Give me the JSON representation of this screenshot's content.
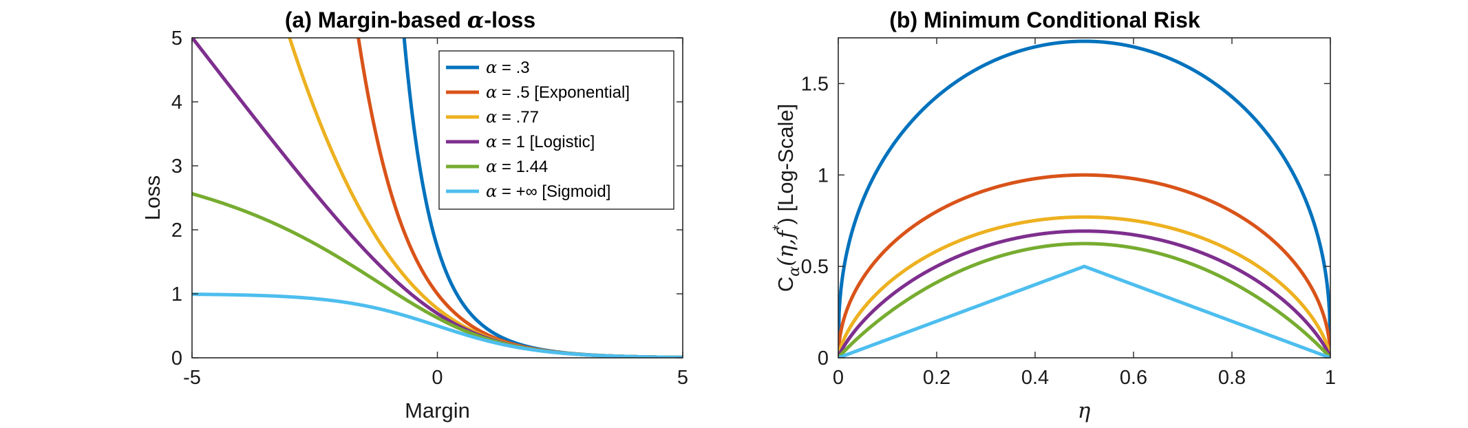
{
  "chart_data": [
    {
      "type": "line",
      "title": "(a) Margin-based α-loss",
      "title_prefix": "(a) Margin-based ",
      "title_greek": "α",
      "title_suffix": "-loss",
      "xlabel": "Margin",
      "ylabel": "Loss",
      "xlim": [
        -5,
        5
      ],
      "ylim": [
        0,
        5
      ],
      "xticks": [
        -5,
        0,
        5
      ],
      "xtick_labels": [
        "-5",
        "0",
        "5"
      ],
      "yticks": [
        0,
        1,
        2,
        3,
        4,
        5
      ],
      "ytick_labels": [
        "0",
        "1",
        "2",
        "3",
        "4",
        "5"
      ],
      "grid": false,
      "legend_position": "top-right",
      "function": "alpha-loss of sigmoid(margin)",
      "series": [
        {
          "name": "α = .3",
          "greek": "α",
          "label": " = .3",
          "alpha": 0.3,
          "color": "#0072BD"
        },
        {
          "name": "α = .5 [Exponential]",
          "greek": "α",
          "label": " = .5 [Exponential]",
          "alpha": 0.5,
          "color": "#D95319"
        },
        {
          "name": "α = .77",
          "greek": "α",
          "label": " = .77",
          "alpha": 0.77,
          "color": "#EDB120"
        },
        {
          "name": "α = 1 [Logistic]",
          "greek": "α",
          "label": " = 1 [Logistic]",
          "alpha": 1,
          "color": "#7E2F8E"
        },
        {
          "name": "α = 1.44",
          "greek": "α",
          "label": " = 1.44",
          "alpha": 1.44,
          "color": "#77AC30"
        },
        {
          "name": "α = +∞ [Sigmoid]",
          "greek": "α",
          "label": " = +∞ [Sigmoid]",
          "alpha": "inf",
          "color": "#4DBEEE"
        }
      ]
    },
    {
      "type": "line",
      "title": "(b) Minimum Conditional Risk",
      "xlabel": "η",
      "ylabel_main": "C",
      "ylabel_sub": "α",
      "ylabel_sup": "*",
      "ylabel_args": "(η,f",
      "ylabel_close": ")",
      "ylabel_tail": " [Log-Scale]",
      "xlim": [
        0,
        1
      ],
      "ylim": [
        0,
        1.75
      ],
      "xticks": [
        0,
        0.2,
        0.4,
        0.6,
        0.8,
        1
      ],
      "xtick_labels": [
        "0",
        "0.2",
        "0.4",
        "0.6",
        "0.8",
        "1"
      ],
      "yticks": [
        0,
        0.5,
        1,
        1.5
      ],
      "ytick_labels": [
        "0",
        "0.5",
        "1",
        "1.5"
      ],
      "grid": false,
      "function": "minimum conditional risk of alpha-loss",
      "series": [
        {
          "name": "α = .3",
          "alpha": 0.3,
          "color": "#0072BD"
        },
        {
          "name": "α = .5 [Exponential]",
          "alpha": 0.5,
          "color": "#D95319"
        },
        {
          "name": "α = .77",
          "alpha": 0.77,
          "color": "#EDB120"
        },
        {
          "name": "α = 1 [Logistic]",
          "alpha": 1,
          "color": "#7E2F8E"
        },
        {
          "name": "α = 1.44",
          "alpha": 1.44,
          "color": "#77AC30"
        },
        {
          "name": "α = +∞ [Sigmoid]",
          "alpha": "inf",
          "color": "#4DBEEE"
        }
      ]
    }
  ]
}
